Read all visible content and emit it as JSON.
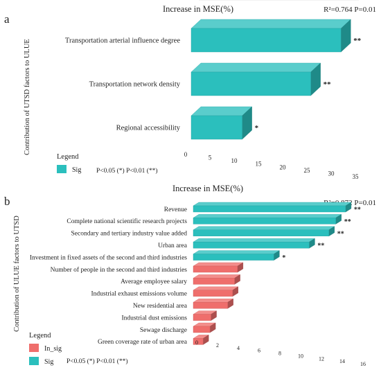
{
  "chart_data": [
    {
      "type": "bar",
      "panel_label": "a",
      "title": "Increase in MSE(%)",
      "stats": "R²=0.764   P=0.01",
      "ylabel": "Contribution of UTSD factors to ULUE",
      "categories": [
        "Transportation arterial influence degree",
        "Transportation network density",
        "Regional accessibility"
      ],
      "values": [
        33.2,
        26.5,
        11.3
      ],
      "significance": [
        "**",
        "**",
        "*"
      ],
      "groups": [
        "Sig",
        "Sig",
        "Sig"
      ],
      "xlim": [
        0,
        35
      ],
      "xticks": [
        "0",
        "5",
        "10",
        "15",
        "20",
        "25",
        "30",
        "35"
      ],
      "legend": {
        "title": "Legend",
        "entries": [
          {
            "label": "Sig",
            "color": "#2bbfbd"
          }
        ],
        "note": "P<0.05     (*) P<0.01     (**)"
      }
    },
    {
      "type": "bar",
      "panel_label": "b",
      "title": "Increase in MSE(%)",
      "stats": "R²=0.872   P=0.01",
      "ylabel": "Contribution of ULUE factors to UTSD",
      "categories": [
        "Revenue",
        "Complete national scientific research projects",
        "Secondary and tertiary industry value added",
        "Urban area",
        "Investment in fixed assets of the second and third industries",
        "Number of people in the second and third industries",
        "Average employee salary",
        "Industrial exhaust emissions volume",
        "New residential area",
        "Industrial dust emissions",
        "Sewage discharge",
        "Green coverage rate of urban area"
      ],
      "values": [
        15.5,
        14.5,
        13.8,
        11.8,
        8.2,
        4.5,
        4.2,
        4.0,
        3.5,
        1.8,
        1.7,
        1.0
      ],
      "significance": [
        "**",
        "**",
        "**",
        "**",
        "*",
        "",
        "",
        "",
        "",
        "",
        "",
        ""
      ],
      "groups": [
        "Sig",
        "Sig",
        "Sig",
        "Sig",
        "Sig",
        "In_sig",
        "In_sig",
        "In_sig",
        "In_sig",
        "In_sig",
        "In_sig",
        "In_sig"
      ],
      "xlim": [
        0,
        16
      ],
      "xticks": [
        "0",
        "2",
        "4",
        "6",
        "8",
        "10",
        "12",
        "14",
        "16"
      ],
      "legend": {
        "title": "Legend",
        "entries": [
          {
            "label": "In_sig",
            "color": "#ef6e6c"
          },
          {
            "label": "Sig",
            "color": "#2bbfbd"
          }
        ],
        "note": "P<0.05     (*) P<0.01     (**)"
      }
    }
  ],
  "colors": {
    "sig": "#2bbfbd",
    "in_sig": "#ef6e6c"
  }
}
